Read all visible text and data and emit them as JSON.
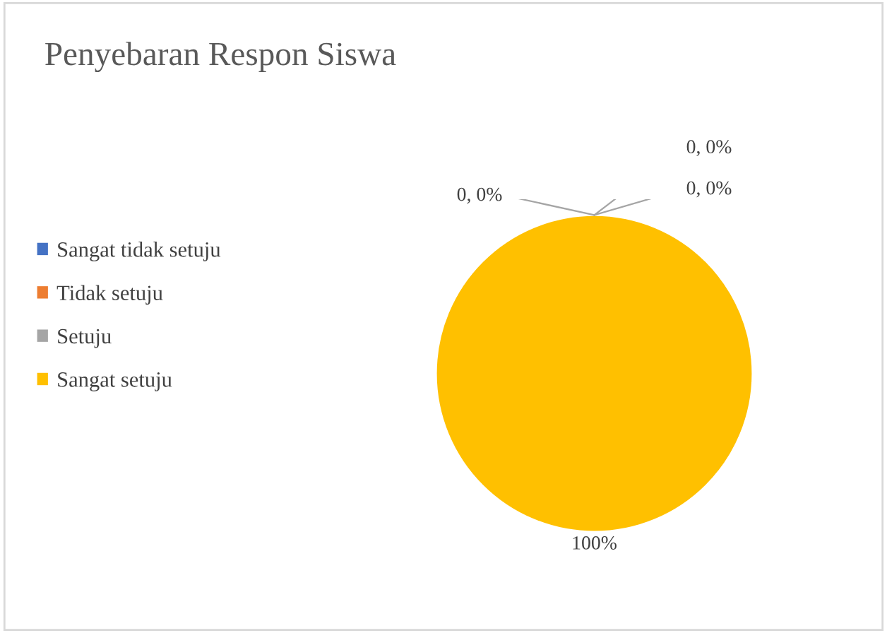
{
  "chart_data": {
    "type": "pie",
    "title": "Penyebaran Respon Siswa",
    "categories": [
      "Sangat tidak setuju",
      "Tidak setuju",
      "Setuju",
      "Sangat setuju"
    ],
    "values": [
      0,
      0,
      0,
      100
    ],
    "colors": [
      "#4472c4",
      "#ed7d31",
      "#a5a5a5",
      "#ffc000"
    ],
    "value_labels": [
      "0, 0%",
      "0, 0%",
      "0, 0%",
      "100%"
    ],
    "legend": "left"
  }
}
